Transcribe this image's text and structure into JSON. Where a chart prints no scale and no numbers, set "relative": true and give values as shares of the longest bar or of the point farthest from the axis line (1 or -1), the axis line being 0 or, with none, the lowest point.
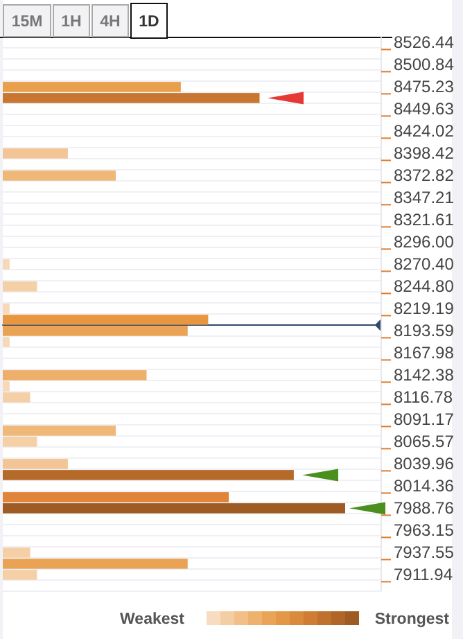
{
  "chart_data": {
    "type": "bar",
    "orientation": "horizontal",
    "relative": true,
    "categories": [
      "8526.44",
      null,
      "8500.84",
      null,
      "8475.23",
      null,
      "8449.63",
      null,
      "8424.02",
      null,
      "8398.42",
      null,
      "8372.82",
      null,
      "8347.21",
      null,
      "8321.61",
      null,
      "8296.00",
      null,
      "8270.40",
      null,
      "8244.80",
      null,
      "8219.19",
      null,
      "8193.59",
      null,
      "8167.98",
      null,
      "8142.38",
      null,
      "8116.78",
      null,
      "8091.17",
      null,
      "8065.57",
      null,
      "8039.96",
      null,
      "8014.36",
      null,
      "7988.76",
      null,
      "7963.15",
      null,
      "7937.55",
      null,
      "7911.94",
      null
    ],
    "values": [
      null,
      null,
      null,
      null,
      0.52,
      0.75,
      null,
      null,
      null,
      null,
      0.19,
      null,
      0.33,
      null,
      null,
      null,
      null,
      null,
      null,
      null,
      0.02,
      null,
      0.1,
      null,
      0.02,
      0.6,
      0.54,
      0.02,
      null,
      null,
      0.42,
      0.02,
      0.08,
      null,
      null,
      0.33,
      0.1,
      null,
      0.19,
      0.85,
      null,
      0.66,
      1,
      null,
      null,
      null,
      0.08,
      0.54,
      0.1,
      null
    ],
    "colors": [
      null,
      null,
      null,
      null,
      "#e9a04c",
      "#c87630",
      null,
      null,
      null,
      null,
      "#f3c494",
      null,
      "#f0b878",
      null,
      null,
      null,
      null,
      null,
      null,
      null,
      "#f7d9b9",
      null,
      "#f5d0a6",
      null,
      "#f7d9b9",
      "#e8973f",
      "#eaa355",
      "#f7d9b9",
      null,
      null,
      "#edaf6a",
      "#f7d9b9",
      "#f5d0a6",
      null,
      null,
      "#f0b878",
      "#f5d0a6",
      null,
      "#f3c494",
      "#b56a2a",
      null,
      "#e0843a",
      "#9e5b23",
      null,
      null,
      null,
      "#f5d0a6",
      "#eaa355",
      "#f5d0a6",
      null
    ],
    "ref_lines": [
      {
        "axis": "y",
        "value": "8193.59",
        "color": "#2f4a6e"
      }
    ],
    "annotations": [
      "15M",
      "1H",
      "4H",
      "1D",
      "Weakest",
      "Strongest"
    ]
  }
}
